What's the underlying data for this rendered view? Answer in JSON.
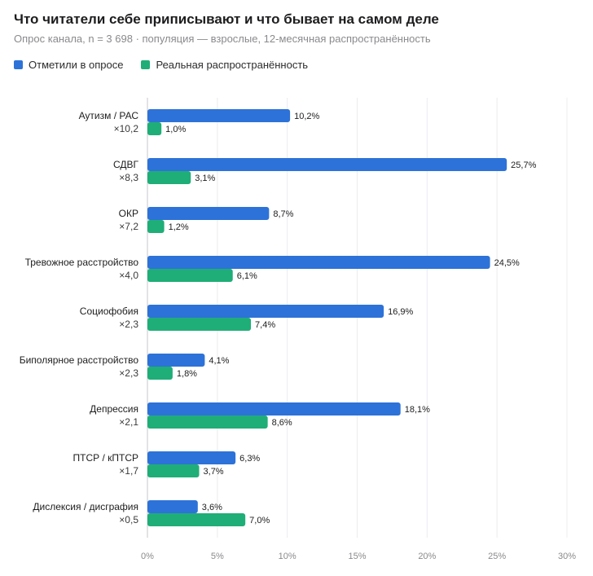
{
  "chart_data": {
    "type": "bar",
    "orientation": "horizontal",
    "title": "Что читатели себе приписывают и что бывает на самом деле",
    "subtitle": "Опрос канала, n = 3 698 · популяция — взрослые, 12-месячная распространённость",
    "categories": [
      "Аутизм / РАС",
      "СДВГ",
      "ОКР",
      "Тревожное расстройство",
      "Социофобия",
      "Биполярное расстройство",
      "Депрессия",
      "ПТСР / кПТСР",
      "Дислексия / дисграфия"
    ],
    "ratios": [
      "×10,2",
      "×8,3",
      "×7,2",
      "×4,0",
      "×2,3",
      "×2,3",
      "×2,1",
      "×1,7",
      "×0,5"
    ],
    "series": [
      {
        "name": "Отметили в опросе",
        "color": "#2d72d8",
        "values": [
          10.2,
          25.7,
          8.7,
          24.5,
          16.9,
          4.1,
          18.1,
          6.3,
          3.6
        ],
        "labels": [
          "10,2%",
          "25,7%",
          "8,7%",
          "24,5%",
          "16,9%",
          "4,1%",
          "18,1%",
          "6,3%",
          "3,6%"
        ]
      },
      {
        "name": "Реальная распространённость",
        "color": "#1fae77",
        "values": [
          1.0,
          3.1,
          1.2,
          6.1,
          7.4,
          1.8,
          8.6,
          3.7,
          7.0
        ],
        "labels": [
          "1,0%",
          "3,1%",
          "1,2%",
          "6,1%",
          "7,4%",
          "1,8%",
          "8,6%",
          "3,7%",
          "7,0%"
        ]
      }
    ],
    "xlim": [
      0,
      30
    ],
    "xticks": [
      0,
      5,
      10,
      15,
      20,
      25,
      30
    ],
    "xtick_labels": [
      "0%",
      "5%",
      "10%",
      "15%",
      "20%",
      "25%",
      "30%"
    ],
    "grid": "vertical",
    "legend_position": "top-left"
  }
}
